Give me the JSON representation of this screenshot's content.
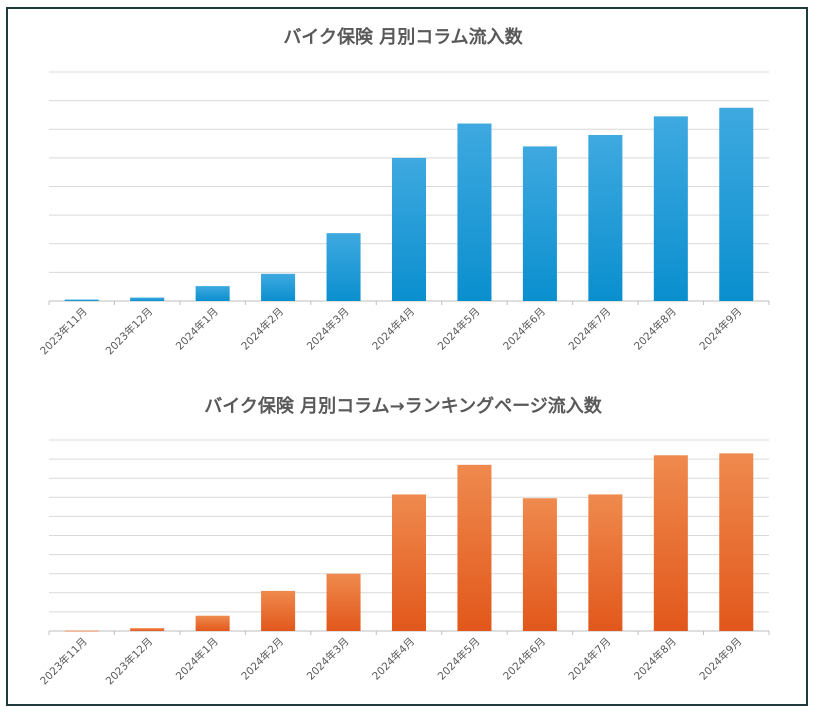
{
  "chart_data": [
    {
      "type": "bar",
      "title": "バイク保険 月別コラム流入数",
      "categories": [
        "2023年11月",
        "2023年12月",
        "2024年1月",
        "2024年2月",
        "2024年3月",
        "2024年4月",
        "2024年5月",
        "2024年6月",
        "2024年7月",
        "2024年8月",
        "2024年9月"
      ],
      "values": [
        0.05,
        0.12,
        0.52,
        0.95,
        2.37,
        5.0,
        6.2,
        5.4,
        5.8,
        6.45,
        6.75
      ],
      "ylim": [
        0,
        8
      ],
      "y_gridlines": 8,
      "y_tick_labels_shown": false,
      "grid": true,
      "legend": "none",
      "color_top": "#3fa9e0",
      "color_bottom": "#0a8fce"
    },
    {
      "type": "bar",
      "title": "バイク保険 月別コラム→ランキングページ流入数",
      "categories": [
        "2023年11月",
        "2023年12月",
        "2024年1月",
        "2024年2月",
        "2024年3月",
        "2024年4月",
        "2024年5月",
        "2024年6月",
        "2024年7月",
        "2024年8月",
        "2024年9月"
      ],
      "values": [
        0.02,
        0.15,
        0.8,
        2.1,
        3.0,
        7.15,
        8.7,
        6.95,
        7.15,
        9.2,
        9.3
      ],
      "ylim": [
        0,
        10
      ],
      "y_gridlines": 10,
      "y_tick_labels_shown": false,
      "grid": true,
      "legend": "none",
      "color_top": "#ef8a4e",
      "color_bottom": "#e2571b"
    }
  ]
}
